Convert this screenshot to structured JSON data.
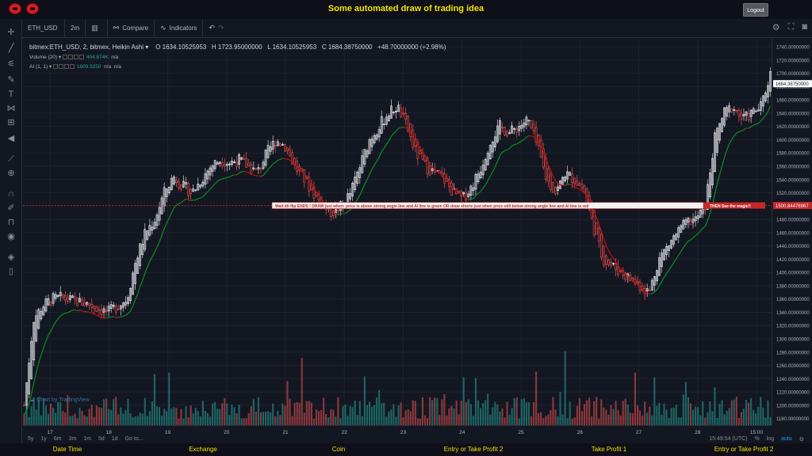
{
  "header": {
    "title": "Some automated draw of trading idea",
    "logout_label": "Logout"
  },
  "toolbar": {
    "symbol": "ETH_USD",
    "interval": "2m",
    "compare_label": "Compare",
    "indicators_label": "Indicators"
  },
  "legend": {
    "title": "bitmex:ETH_USD, 2, bitmex, Heikin Ashi",
    "open": "O 1634.10525953",
    "high": "H 1723.95000000",
    "low": "L 1634.10525953",
    "close": "C 1684.38750000",
    "change": "+48.70000000 (+2.98%)",
    "volume_label": "Volume (20)",
    "volume_value": "404.874K",
    "volume_na": "n/a",
    "ai_label": "AI (1, 1)",
    "ai_value": "1609.9250",
    "ai_na1": "n/a",
    "ai_na2": "n/a"
  },
  "annotation": {
    "left_text": "Wait till flip ENDS ! DRAW just when: price is above strong angle line and AI line is green       OR        draw shorts just when price still below strong angle line and AI line is red",
    "right_text": "THEN See the magic!!",
    "level_label": "1500.84476967"
  },
  "current_price_label": "1684.38750000",
  "watermark": "Chart by TradingView",
  "bottom": {
    "ranges": [
      "5y",
      "1y",
      "6m",
      "3m",
      "1m",
      "5d",
      "1d"
    ],
    "goto": "Go to...",
    "time": "15:49:54 (UTC)",
    "pct": "%",
    "log": "log",
    "auto": "auto"
  },
  "footer": {
    "labels": [
      "Date Time",
      "Exchange",
      "Coin",
      "Entry or Take Profit 2",
      "Take Profit 1",
      "Entry or Take Profit 2"
    ]
  },
  "colors": {
    "up": "#ffffff",
    "down": "#ef5350",
    "vol_up": "#26a69a",
    "vol_down": "#ef5350",
    "ai_green": "#0a8f1f",
    "ai_red": "#c80c0c",
    "accent": "#f5e400"
  },
  "chart_data": {
    "type": "line",
    "title": "bitmex:ETH_USD, 2, bitmex, Heikin Ashi",
    "x_ticks": [
      "17",
      "18",
      "19",
      "20",
      "21",
      "22",
      "23",
      "24",
      "25",
      "26",
      "27",
      "28",
      "15:00"
    ],
    "y_ticks": [
      1180,
      1200,
      1220,
      1240,
      1260,
      1280,
      1300,
      1320,
      1340,
      1360,
      1380,
      1400,
      1420,
      1440,
      1460,
      1480,
      1500,
      1520,
      1540,
      1560,
      1580,
      1600,
      1620,
      1640,
      1660,
      1680,
      1700,
      1720,
      1740
    ],
    "ylim": [
      1170,
      1752
    ],
    "price_path": [
      1200,
      1330,
      1350,
      1360,
      1362,
      1358,
      1355,
      1352,
      1345,
      1340,
      1350,
      1360,
      1420,
      1460,
      1480,
      1520,
      1545,
      1530,
      1520,
      1540,
      1560,
      1570,
      1565,
      1570,
      1560,
      1550,
      1580,
      1600,
      1590,
      1560,
      1540,
      1520,
      1500,
      1490,
      1500,
      1520,
      1560,
      1600,
      1620,
      1640,
      1650,
      1620,
      1580,
      1560,
      1550,
      1540,
      1520,
      1510,
      1530,
      1560,
      1600,
      1620,
      1610,
      1620,
      1630,
      1590,
      1540,
      1520,
      1550,
      1540,
      1525,
      1470,
      1420,
      1410,
      1400,
      1390,
      1380,
      1370,
      1420,
      1440,
      1460,
      1475,
      1480,
      1500,
      1600,
      1640,
      1650,
      1630,
      1640,
      1650,
      1700
    ],
    "level": 1500.84476967,
    "current_price": 1684.3875
  }
}
